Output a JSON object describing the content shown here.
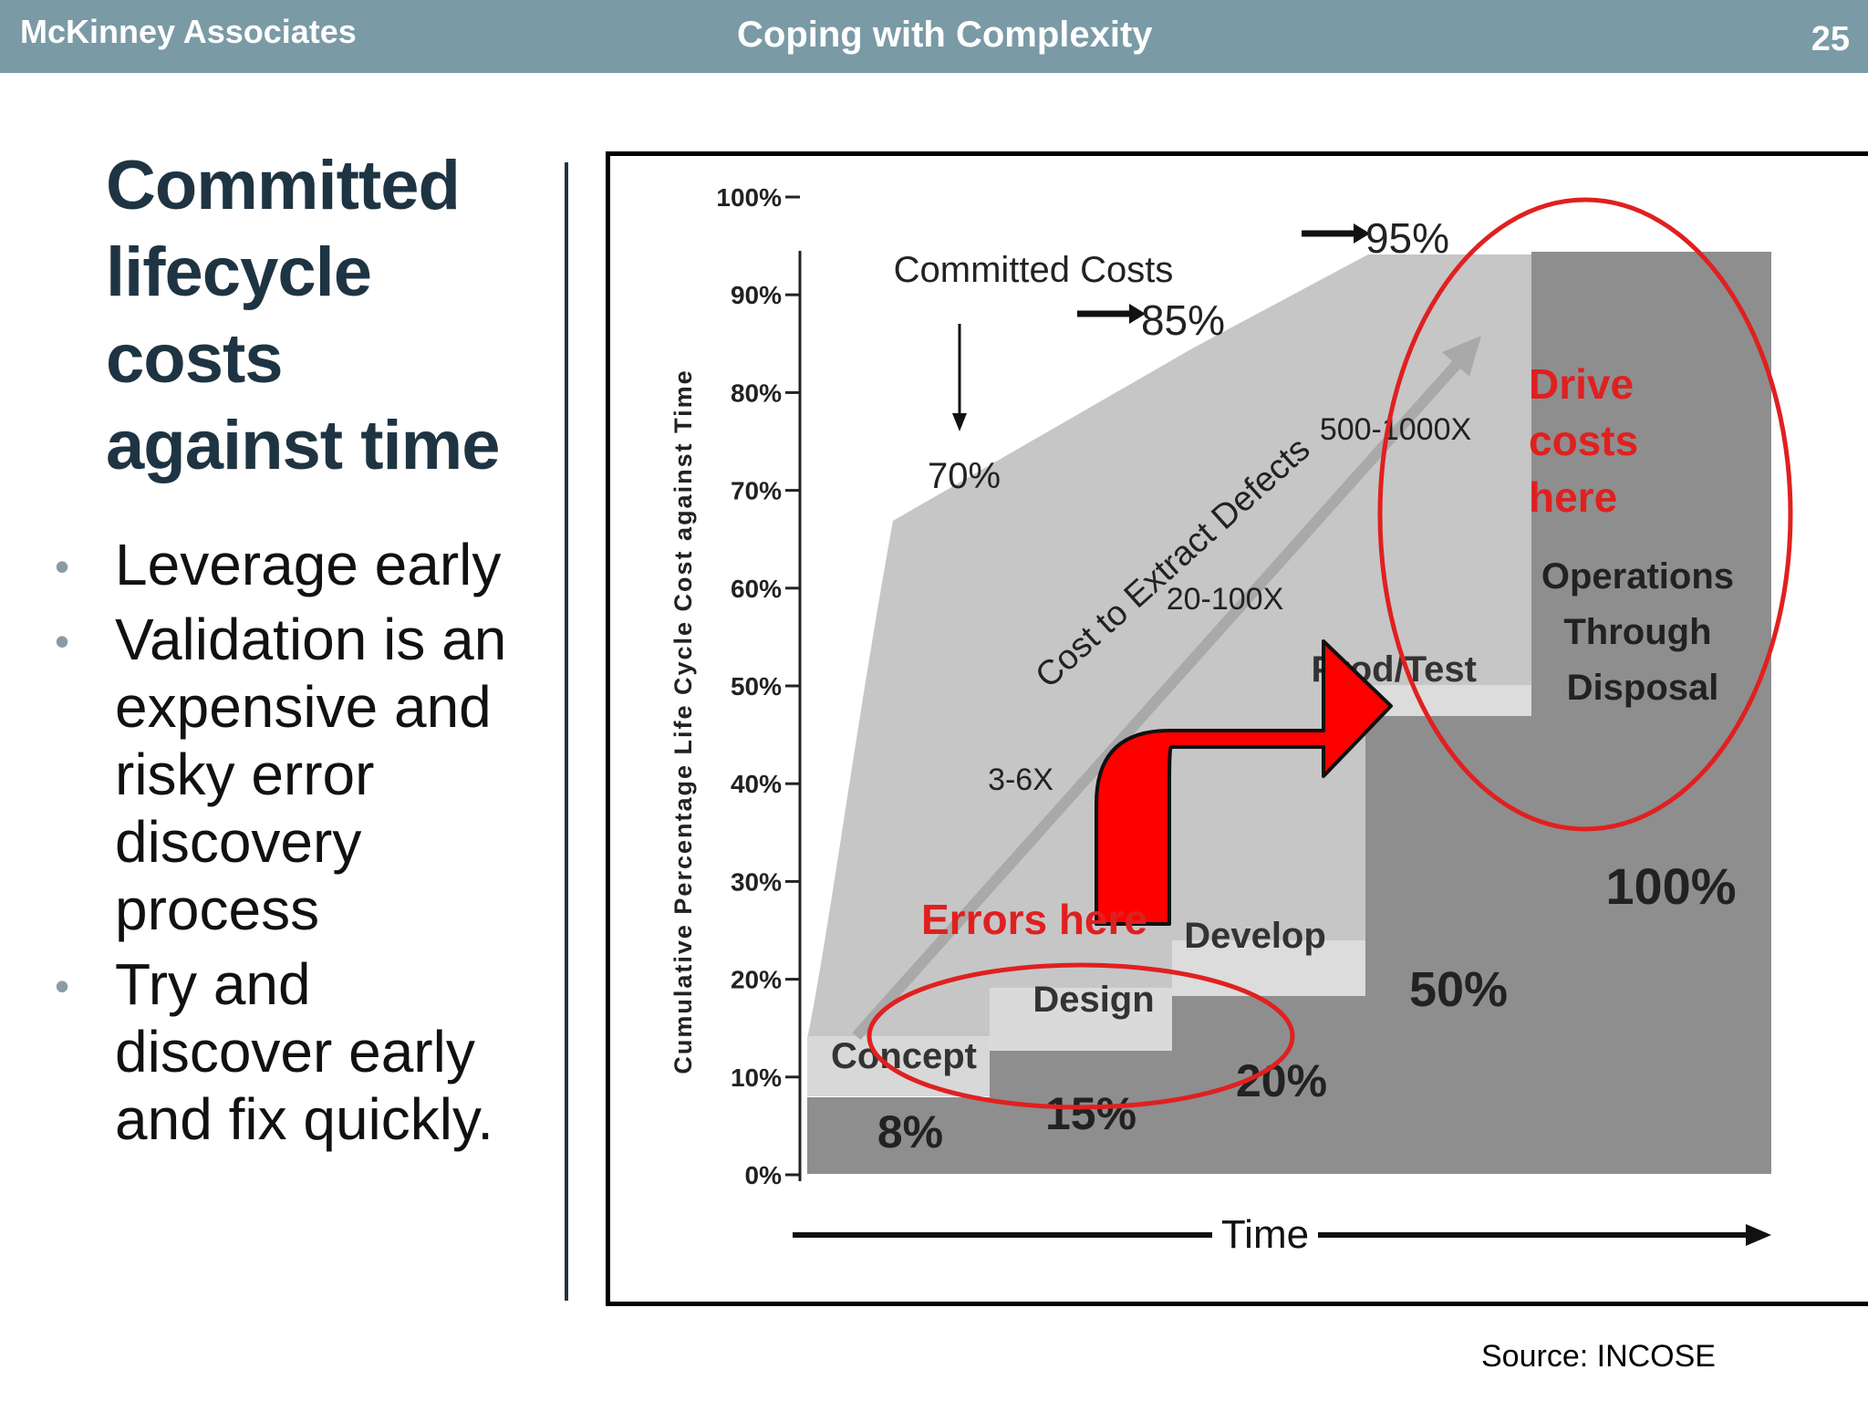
{
  "header": {
    "org": "McKinney Associates",
    "topic": "Coping with Complexity",
    "slide_number": "25"
  },
  "title_lines": [
    "Committed",
    "lifecycle",
    "costs",
    "against time"
  ],
  "bullets": [
    "Leverage early",
    "Validation is an expensive and risky error discovery process",
    "Try and discover early and fix quickly."
  ],
  "bullet_glyph": "•",
  "source": "Source: INCOSE",
  "chart": {
    "y_axis_label": "Cumulative Percentage Life Cycle Cost against Time",
    "y_ticks": [
      "100%",
      "90%",
      "80%",
      "70%",
      "60%",
      "50%",
      "40%",
      "30%",
      "20%",
      "10%",
      "0%"
    ],
    "x_axis_label": "Time",
    "committed_costs_label": "Committed Costs",
    "committed_points": [
      "70%",
      "85%",
      "95%"
    ],
    "defect_arrow_label": "Cost to Extract Defects",
    "defect_multipliers": [
      "3-6X",
      "20-100X",
      "500-1000X"
    ],
    "phases": [
      "Concept",
      "Design",
      "Develop",
      "Prod/Test",
      "Operations Through Disposal"
    ],
    "phase_spent_costs": [
      "8%",
      "15%",
      "20%",
      "50%",
      "100%"
    ],
    "callouts": {
      "errors": "Errors here",
      "drive": "Drive costs here"
    },
    "colors": {
      "callout_red": "#e02020",
      "arrow_red": "#ff0000",
      "committed_area": "#c6c6c6",
      "phase_light": "#dcdcdc",
      "spent_dark": "#8e8e8e"
    }
  }
}
